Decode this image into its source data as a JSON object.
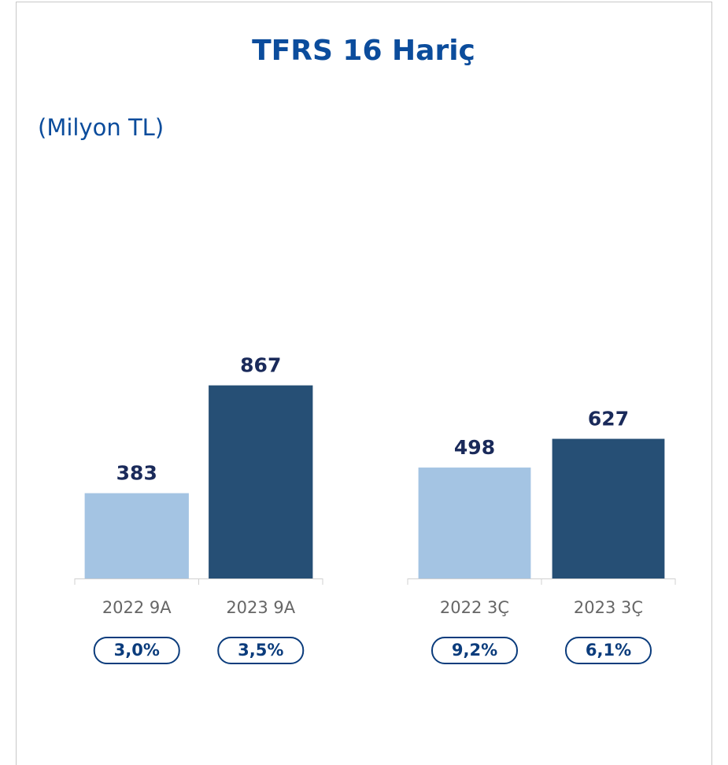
{
  "header": {
    "title": "TFRS 16 Hariç",
    "subtitle": "(Milyon TL)"
  },
  "chart_data": [
    {
      "type": "bar",
      "categories": [
        "2022 9A",
        "2023 9A"
      ],
      "values": [
        383,
        867
      ],
      "colors": [
        "#a4c4e3",
        "#264f75"
      ],
      "badges": [
        "3,0%",
        "3,5%"
      ]
    },
    {
      "type": "bar",
      "categories": [
        "2022 3Ç",
        "2023 3Ç"
      ],
      "values": [
        498,
        627
      ],
      "colors": [
        "#a4c4e3",
        "#264f75"
      ],
      "badges": [
        "9,2%",
        "6,1%"
      ]
    }
  ]
}
